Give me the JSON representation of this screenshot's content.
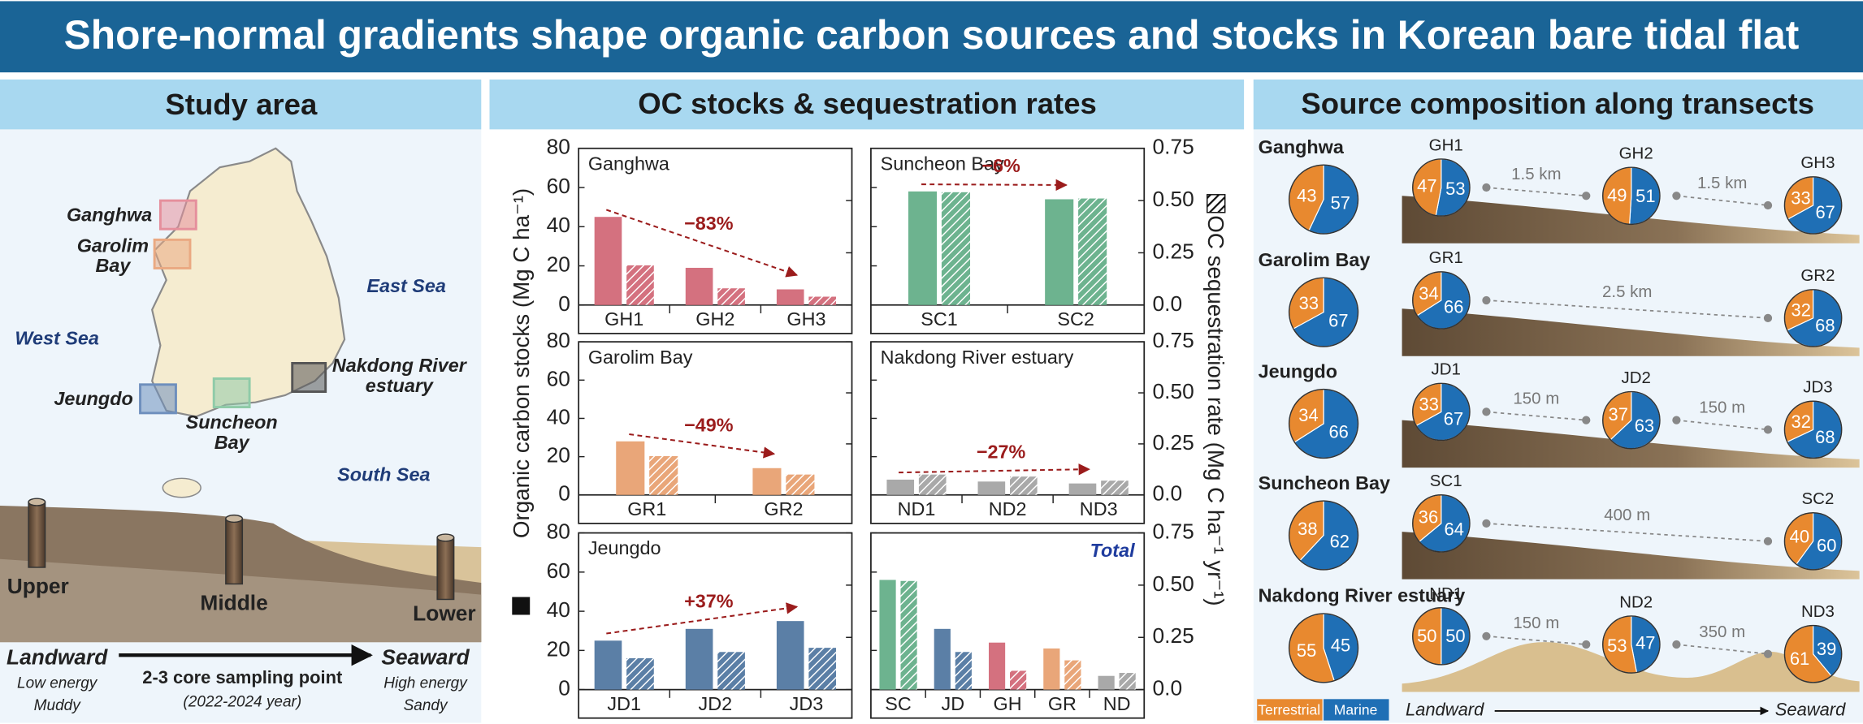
{
  "header": {
    "title": "Shore-normal gradients shape organic carbon sources and stocks in Korean bare tidal flat"
  },
  "study_area": {
    "title": "Study area",
    "sites": [
      {
        "lines": [
          "Ganghwa"
        ],
        "color": "#e58f9c"
      },
      {
        "lines": [
          "Garolim",
          "Bay"
        ],
        "color": "#eaa982"
      },
      {
        "lines": [
          "Jeungdo"
        ],
        "color": "#6e8fbd"
      },
      {
        "lines": [
          "Suncheon",
          "Bay"
        ],
        "color": "#8fcba8"
      },
      {
        "lines": [
          "Nakdong River",
          "estuary"
        ],
        "color": "#555555"
      }
    ],
    "seas": [
      "West Sea",
      "East Sea",
      "South Sea"
    ],
    "zones": [
      "Upper",
      "Middle",
      "Lower"
    ],
    "landward": {
      "title": "Landward",
      "lines": [
        "Low energy",
        "Muddy"
      ]
    },
    "sampling": [
      "2-3 core sampling point",
      "(2022-2024 year)"
    ],
    "seaward": {
      "title": "Seaward",
      "lines": [
        "High energy",
        "Sandy"
      ]
    }
  },
  "oc_panel": {
    "title": "OC stocks & sequestration rates",
    "y_label": "Organic carbon stocks (Mg C ha⁻¹)",
    "y2_label": "OC sequestration rate (Mg C ha⁻¹ yr⁻¹)"
  },
  "chart_data": [
    {
      "type": "bar",
      "title": "Ganghwa",
      "categories": [
        "GH1",
        "GH2",
        "GH3"
      ],
      "series": [
        {
          "color": "#d4717f",
          "values": [
            45,
            19,
            8
          ]
        },
        {
          "color": "#d4717f",
          "hatched": true,
          "axis": "y2",
          "values": [
            0.19,
            0.08,
            0.04
          ]
        }
      ],
      "ylim": [
        0,
        80
      ],
      "yticks": [
        0,
        20,
        40,
        60,
        80
      ],
      "y2lim": [
        0,
        0.75
      ],
      "y2ticks": [
        {
          "value": 0,
          "label": "0.0"
        },
        0.25,
        {
          "value": 0.5,
          "label": "0.50"
        },
        0.75
      ],
      "annotation": "−83%"
    },
    {
      "type": "bar",
      "title": "Suncheon Bay",
      "categories": [
        "SC1",
        "SC2"
      ],
      "series": [
        {
          "color": "#6db38f",
          "values": [
            58,
            54
          ]
        },
        {
          "color": "#6db38f",
          "hatched": true,
          "axis": "y2",
          "values": [
            0.54,
            0.51
          ]
        }
      ],
      "ylim": [
        0,
        80
      ],
      "yticks": [
        0,
        20,
        40,
        60,
        80
      ],
      "y2lim": [
        0,
        0.75
      ],
      "y2ticks": [
        {
          "value": 0,
          "label": "0.0"
        },
        0.25,
        {
          "value": 0.5,
          "label": "0.50"
        },
        0.75
      ],
      "annotation": "−6%"
    },
    {
      "type": "bar",
      "title": "Garolim Bay",
      "categories": [
        "GR1",
        "GR2"
      ],
      "series": [
        {
          "color": "#e9a679",
          "values": [
            28,
            14
          ]
        },
        {
          "color": "#e9a679",
          "hatched": true,
          "axis": "y2",
          "values": [
            0.19,
            0.1
          ]
        }
      ],
      "ylim": [
        0,
        80
      ],
      "yticks": [
        0,
        20,
        40,
        60,
        80
      ],
      "y2lim": [
        0,
        0.75
      ],
      "y2ticks": [
        {
          "value": 0,
          "label": "0.0"
        },
        0.25,
        {
          "value": 0.5,
          "label": "0.50"
        },
        0.75
      ],
      "annotation": "−49%"
    },
    {
      "type": "bar",
      "title": "Nakdong River estuary",
      "categories": [
        "ND1",
        "ND2",
        "ND3"
      ],
      "series": [
        {
          "color": "#a9a9a9",
          "values": [
            8,
            7,
            6
          ]
        },
        {
          "color": "#a9a9a9",
          "hatched": true,
          "axis": "y2",
          "values": [
            0.1,
            0.09,
            0.07
          ]
        }
      ],
      "ylim": [
        0,
        80
      ],
      "yticks": [
        0,
        20,
        40,
        60,
        80
      ],
      "y2lim": [
        0,
        0.75
      ],
      "y2ticks": [
        {
          "value": 0,
          "label": "0.0"
        },
        0.25,
        {
          "value": 0.5,
          "label": "0.50"
        },
        0.75
      ],
      "annotation": "−27%"
    },
    {
      "type": "bar",
      "title": "Jeungdo",
      "categories": [
        "JD1",
        "JD2",
        "JD3"
      ],
      "series": [
        {
          "color": "#5b7fa6",
          "values": [
            25,
            31,
            35
          ]
        },
        {
          "color": "#5b7fa6",
          "hatched": true,
          "axis": "y2",
          "values": [
            0.15,
            0.18,
            0.2
          ]
        }
      ],
      "ylim": [
        0,
        80
      ],
      "yticks": [
        0,
        20,
        40,
        60,
        80
      ],
      "y2lim": [
        0,
        0.75
      ],
      "y2ticks": [
        {
          "value": 0,
          "label": "0.0"
        },
        0.25,
        {
          "value": 0.5,
          "label": "0.50"
        },
        0.75
      ],
      "annotation": "+37%"
    },
    {
      "type": "bar",
      "title": "Total",
      "categories": [
        "SC",
        "JD",
        "GH",
        "GR",
        "ND"
      ],
      "series": [
        {
          "colors": [
            "#6db38f",
            "#5b7fa6",
            "#d4717f",
            "#e9a679",
            "#a9a9a9"
          ],
          "values": [
            56,
            31,
            24,
            21,
            7
          ]
        },
        {
          "colors": [
            "#6db38f",
            "#5b7fa6",
            "#d4717f",
            "#e9a679",
            "#a9a9a9"
          ],
          "hatched": true,
          "axis": "y2",
          "values": [
            0.52,
            0.18,
            0.09,
            0.14,
            0.08
          ]
        }
      ],
      "ylim": [
        0,
        80
      ],
      "yticks": [
        0,
        20,
        40,
        60,
        80
      ],
      "y2lim": [
        0,
        0.75
      ],
      "y2ticks": [
        {
          "value": 0,
          "label": "0.0"
        },
        0.25,
        {
          "value": 0.5,
          "label": "0.50"
        },
        0.75
      ]
    }
  ],
  "source_composition": {
    "title": "Source composition along transects",
    "legend": [
      {
        "name": "Terrestrial",
        "color": "#e8892f"
      },
      {
        "name": "Marine",
        "color": "#1f6fb5"
      }
    ],
    "rows": [
      {
        "site": "Ganghwa",
        "overall": [
          43,
          57
        ],
        "cores": [
          {
            "label": "GH1",
            "values": [
              47,
              53
            ]
          },
          {
            "label": "GH2",
            "values": [
              49,
              51
            ]
          },
          {
            "label": "GH3",
            "values": [
              33,
              67
            ]
          }
        ],
        "distances": [
          "1.5 km",
          "1.5 km"
        ]
      },
      {
        "site": "Garolim Bay",
        "overall": [
          33,
          67
        ],
        "cores": [
          {
            "label": "GR1",
            "values": [
              34,
              66
            ]
          },
          {
            "label": "GR2",
            "values": [
              32,
              68
            ]
          }
        ],
        "distances": [
          "2.5 km"
        ]
      },
      {
        "site": "Jeungdo",
        "overall": [
          34,
          66
        ],
        "cores": [
          {
            "label": "JD1",
            "values": [
              33,
              67
            ]
          },
          {
            "label": "JD2",
            "values": [
              37,
              63
            ]
          },
          {
            "label": "JD3",
            "values": [
              32,
              68
            ]
          }
        ],
        "distances": [
          "150 m",
          "150 m"
        ]
      },
      {
        "site": "Suncheon Bay",
        "overall": [
          38,
          62
        ],
        "cores": [
          {
            "label": "SC1",
            "values": [
              36,
              64
            ]
          },
          {
            "label": "SC2",
            "values": [
              40,
              60
            ]
          }
        ],
        "distances": [
          "400 m"
        ]
      },
      {
        "site": "Nakdong River estuary",
        "overall": [
          55,
          45
        ],
        "cores": [
          {
            "label": "ND1",
            "values": [
              50,
              50
            ]
          },
          {
            "label": "ND2",
            "values": [
              53,
              47
            ]
          },
          {
            "label": "ND3",
            "values": [
              61,
              39
            ]
          }
        ],
        "distances": [
          "150 m",
          "350 m"
        ]
      }
    ],
    "axis": {
      "start": "Landward",
      "end": "Seaward"
    }
  }
}
